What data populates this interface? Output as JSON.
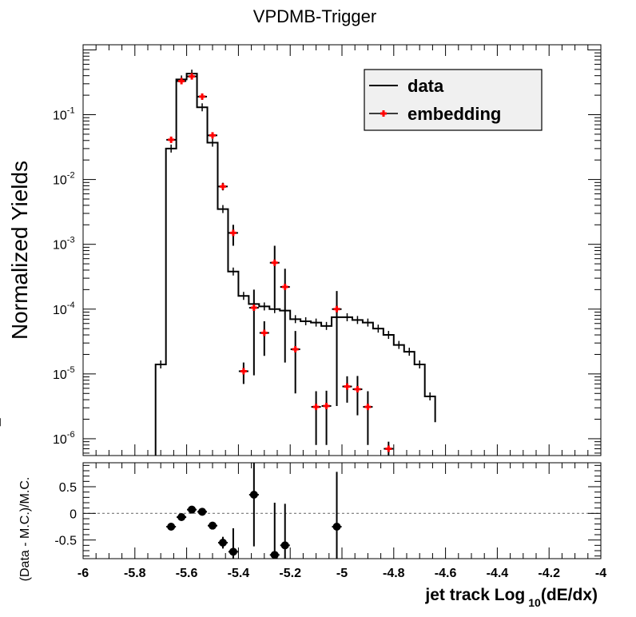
{
  "chart_data": [
    {
      "type": "line",
      "title": "VPDMB-Trigger",
      "ylabel": "Normalized Yields",
      "xlabel_main": "jet track Log",
      "xlabel_sub": "10",
      "xlabel_tail": "(dE/dx)",
      "xlim": [
        -6,
        -4
      ],
      "ylim": [
        5.5e-07,
        1.2
      ],
      "yscale": "log",
      "grid": false,
      "legend_position": "top-right",
      "y_ticks": [
        {
          "value": 0.1,
          "base": "10",
          "exp": "-1"
        },
        {
          "value": 0.01,
          "base": "10",
          "exp": "-2"
        },
        {
          "value": 0.001,
          "base": "10",
          "exp": "-3"
        },
        {
          "value": 0.0001,
          "base": "10",
          "exp": "-4"
        },
        {
          "value": 1e-05,
          "base": "10",
          "exp": "-5"
        },
        {
          "value": 1e-06,
          "base": "10",
          "exp": "-6"
        }
      ],
      "series": [
        {
          "name": "data",
          "style": "step",
          "color": "#000000",
          "edges": [
            -5.72,
            -5.68,
            -5.64,
            -5.6,
            -5.56,
            -5.52,
            -5.48,
            -5.44,
            -5.4,
            -5.36,
            -5.32,
            -5.28,
            -5.24,
            -5.2,
            -5.16,
            -5.12,
            -5.08,
            -5.04,
            -5.0,
            -4.96,
            -4.92,
            -4.88,
            -4.84,
            -4.8,
            -4.76,
            -4.72,
            -4.68,
            -4.64
          ],
          "values": [
            1.4e-05,
            0.03,
            0.35,
            0.43,
            0.13,
            0.037,
            0.0035,
            0.00038,
            0.00016,
            0.00012,
            0.00011,
            0.0001,
            9.5e-05,
            7e-05,
            6.5e-05,
            6.2e-05,
            5.5e-05,
            7.5e-05,
            7.5e-05,
            6.8e-05,
            6.2e-05,
            5e-05,
            4e-05,
            2.8e-05,
            2.2e-05,
            1.4e-05,
            4.5e-06,
            1.8e-06
          ]
        },
        {
          "name": "embedding",
          "style": "errorbar",
          "color": "#ff0000",
          "points": [
            {
              "x": -5.66,
              "y": 0.041,
              "lo": 0.037,
              "hi": 0.045
            },
            {
              "x": -5.62,
              "y": 0.33,
              "lo": 0.31,
              "hi": 0.35
            },
            {
              "x": -5.58,
              "y": 0.39,
              "lo": 0.36,
              "hi": 0.42
            },
            {
              "x": -5.54,
              "y": 0.19,
              "lo": 0.17,
              "hi": 0.21
            },
            {
              "x": -5.5,
              "y": 0.048,
              "lo": 0.044,
              "hi": 0.053
            },
            {
              "x": -5.46,
              "y": 0.0078,
              "lo": 0.0068,
              "hi": 0.0089
            },
            {
              "x": -5.42,
              "y": 0.0015,
              "lo": 0.00095,
              "hi": 0.002
            },
            {
              "x": -5.38,
              "y": 1.1e-05,
              "lo": 7e-06,
              "hi": 1.5e-05
            },
            {
              "x": -5.34,
              "y": 0.000105,
              "lo": 9.5e-06,
              "hi": 0.0002
            },
            {
              "x": -5.3,
              "y": 4.3e-05,
              "lo": 1.9e-05,
              "hi": 6.5e-05
            },
            {
              "x": -5.26,
              "y": 0.00052,
              "lo": 0.000105,
              "hi": 0.00095
            },
            {
              "x": -5.22,
              "y": 0.00022,
              "lo": 1.5e-05,
              "hi": 0.00042
            },
            {
              "x": -5.18,
              "y": 2.4e-05,
              "lo": 5e-06,
              "hi": 4.6e-05
            },
            {
              "x": -5.1,
              "y": 3.1e-06,
              "lo": 8e-07,
              "hi": 5.4e-06
            },
            {
              "x": -5.06,
              "y": 3.2e-06,
              "lo": 8e-07,
              "hi": 5.5e-06
            },
            {
              "x": -5.02,
              "y": 0.0001,
              "lo": 3.2e-06,
              "hi": 0.00019
            },
            {
              "x": -4.98,
              "y": 6.4e-06,
              "lo": 3.6e-06,
              "hi": 9.2e-06
            },
            {
              "x": -4.94,
              "y": 5.8e-06,
              "lo": 2.3e-06,
              "hi": 9.3e-06
            },
            {
              "x": -4.9,
              "y": 3.1e-06,
              "lo": 8e-07,
              "hi": 5.4e-06
            },
            {
              "x": -4.82,
              "y": 7e-07,
              "lo": 5.5e-07,
              "hi": 9e-07
            }
          ]
        }
      ]
    },
    {
      "type": "scatter",
      "ylabel": "(Data - M.C.)/M.C.",
      "xlim": [
        -6,
        -4
      ],
      "ylim": [
        -0.85,
        0.95
      ],
      "reference_line": 0,
      "x_ticks": [
        "-6",
        "-5.8",
        "-5.6",
        "-5.4",
        "-5.2",
        "-5",
        "-4.8",
        "-4.6",
        "-4.4",
        "-4.2",
        "-4"
      ],
      "y_ticks": [
        "0.5",
        "0",
        "-0.5"
      ],
      "series": [
        {
          "name": "",
          "color": "#000000",
          "points": [
            {
              "x": -5.66,
              "y": -0.25,
              "lo": -0.28,
              "hi": -0.22
            },
            {
              "x": -5.62,
              "y": -0.07,
              "lo": -0.1,
              "hi": -0.04
            },
            {
              "x": -5.58,
              "y": 0.07,
              "lo": 0.04,
              "hi": 0.1
            },
            {
              "x": -5.54,
              "y": 0.03,
              "lo": 0.0,
              "hi": 0.06
            },
            {
              "x": -5.5,
              "y": -0.23,
              "lo": -0.26,
              "hi": -0.2
            },
            {
              "x": -5.46,
              "y": -0.55,
              "lo": -0.66,
              "hi": -0.44
            },
            {
              "x": -5.42,
              "y": -0.72,
              "lo": -0.85,
              "hi": -0.28
            },
            {
              "x": -5.34,
              "y": 0.35,
              "lo": -0.62,
              "hi": 0.95
            },
            {
              "x": -5.26,
              "y": -0.78,
              "lo": -0.85,
              "hi": 0.2
            },
            {
              "x": -5.22,
              "y": -0.6,
              "lo": -0.85,
              "hi": 0.18
            },
            {
              "x": -5.02,
              "y": -0.25,
              "lo": -0.85,
              "hi": 0.78
            }
          ]
        }
      ]
    }
  ]
}
